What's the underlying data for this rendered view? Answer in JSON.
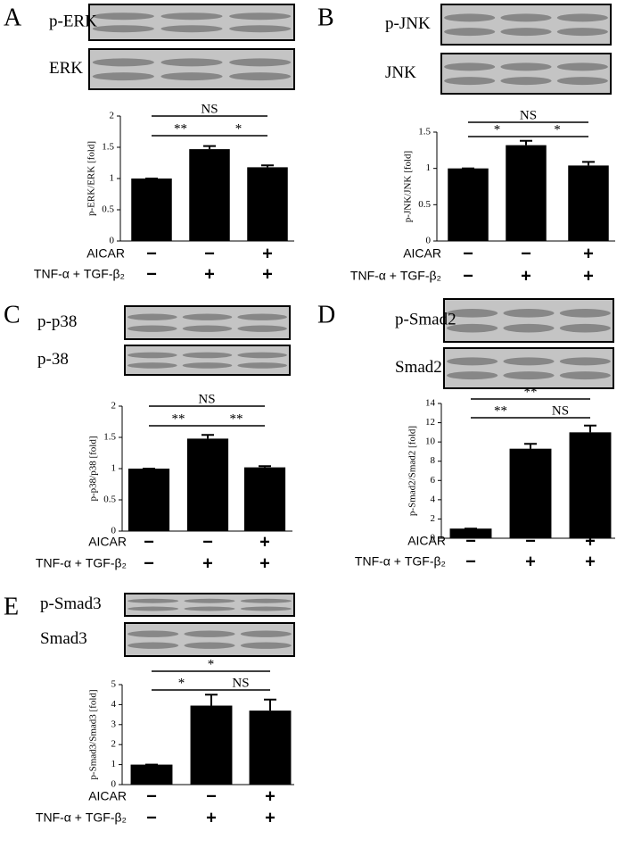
{
  "chart_data": [
    {
      "type": "bar",
      "panel": "A",
      "blots": [
        "p-ERK",
        "ERK"
      ],
      "ylabel": "p-ERK/ERK [fold]",
      "values": [
        1,
        1.47,
        1.18
      ],
      "errors": [
        0,
        0.05,
        0.03
      ],
      "color": "#000000",
      "ylim": [
        0,
        2
      ],
      "yticks": [
        0,
        0.5,
        1,
        1.5,
        2
      ],
      "significance": [
        "**",
        "*",
        "NS"
      ],
      "conditions": [
        {
          "label": "AICAR",
          "signs": [
            "−",
            "−",
            "+"
          ]
        },
        {
          "label": "TNF-α + TGF-β₂",
          "signs": [
            "−",
            "+",
            "+"
          ]
        }
      ]
    },
    {
      "type": "bar",
      "panel": "B",
      "blots": [
        "p-JNK",
        "JNK"
      ],
      "ylabel": "p-JNK/JNK [fold]",
      "values": [
        1,
        1.32,
        1.04
      ],
      "errors": [
        0,
        0.06,
        0.05
      ],
      "color": "#000000",
      "ylim": [
        0,
        1.5
      ],
      "yticks": [
        0,
        0.5,
        1,
        1.5
      ],
      "significance": [
        "*",
        "*",
        "NS"
      ],
      "conditions": [
        {
          "label": "AICAR",
          "signs": [
            "−",
            "−",
            "+"
          ]
        },
        {
          "label": "TNF-α + TGF-β₂",
          "signs": [
            "−",
            "+",
            "+"
          ]
        }
      ]
    },
    {
      "type": "bar",
      "panel": "C",
      "blots": [
        "p-p38",
        "p-38"
      ],
      "ylabel": "p-p38/p38 [fold]",
      "values": [
        1,
        1.48,
        1.02
      ],
      "errors": [
        0,
        0.06,
        0.02
      ],
      "color": "#000000",
      "ylim": [
        0,
        2
      ],
      "yticks": [
        0,
        0.5,
        1,
        1.5,
        2
      ],
      "significance": [
        "**",
        "**",
        "NS"
      ],
      "conditions": [
        {
          "label": "AICAR",
          "signs": [
            "−",
            "−",
            "+"
          ]
        },
        {
          "label": "TNF-α + TGF-β₂",
          "signs": [
            "−",
            "+",
            "+"
          ]
        }
      ]
    },
    {
      "type": "bar",
      "panel": "D",
      "blots": [
        "p-Smad2",
        "Smad2"
      ],
      "ylabel": "p-Smad2/Smad2 [fold]",
      "values": [
        1,
        9.3,
        11
      ],
      "errors": [
        0,
        0.5,
        0.7
      ],
      "color": "#000000",
      "ylim": [
        0,
        14
      ],
      "yticks": [
        0,
        2,
        4,
        6,
        8,
        10,
        12,
        14
      ],
      "significance": [
        "**",
        "NS",
        "**"
      ],
      "conditions": [
        {
          "label": "AICAR",
          "signs": [
            "−",
            "−",
            "+"
          ]
        },
        {
          "label": "TNF-α + TGF-β₂",
          "signs": [
            "−",
            "+",
            "+"
          ]
        }
      ]
    },
    {
      "type": "bar",
      "panel": "E",
      "blots": [
        "p-Smad3",
        "Smad3"
      ],
      "ylabel": "p-Smad3/Smad3 [fold]",
      "values": [
        1,
        3.95,
        3.7
      ],
      "errors": [
        0,
        0.55,
        0.55
      ],
      "color": "#000000",
      "ylim": [
        0,
        5
      ],
      "yticks": [
        0,
        1,
        2,
        3,
        4,
        5
      ],
      "significance": [
        "*",
        "NS",
        "*"
      ],
      "conditions": [
        {
          "label": "AICAR",
          "signs": [
            "−",
            "−",
            "+"
          ]
        },
        {
          "label": "TNF-α + TGF-β₂",
          "signs": [
            "−",
            "+",
            "+"
          ]
        }
      ]
    }
  ]
}
